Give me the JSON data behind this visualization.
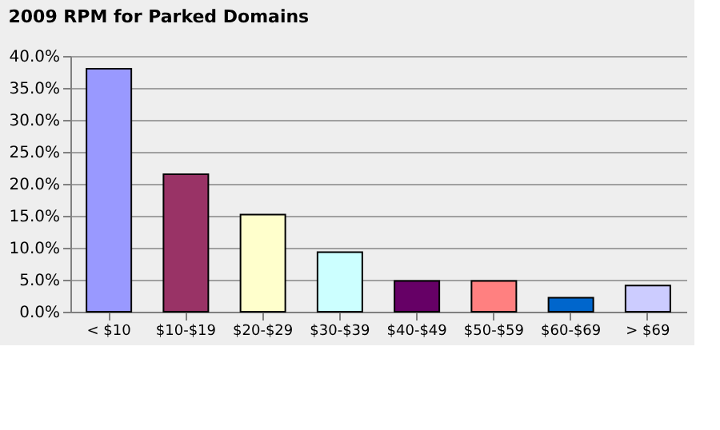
{
  "chart_data": {
    "type": "bar",
    "title": "2009  RPM for Parked Domains",
    "categories": [
      "< $10",
      "$10-$19",
      "$20-$29",
      "$30-$39",
      "$40-$49",
      "$50-$59",
      "$60-$69",
      "> $69"
    ],
    "values": [
      38,
      21.5,
      15.2,
      9.3,
      4.8,
      4.8,
      2.2,
      4.1
    ],
    "colors": [
      "#9999ff",
      "#993366",
      "#ffffcc",
      "#ccffff",
      "#660066",
      "#ff8080",
      "#0066cc",
      "#ccccff"
    ],
    "ylim": [
      0,
      40
    ],
    "yticks": [
      {
        "value": 0,
        "label": "0.0%"
      },
      {
        "value": 5,
        "label": "5.0%"
      },
      {
        "value": 10,
        "label": "10.0%"
      },
      {
        "value": 15,
        "label": "15.0%"
      },
      {
        "value": 20,
        "label": "20.0%"
      },
      {
        "value": 25,
        "label": "25.0%"
      },
      {
        "value": 30,
        "label": "30.0%"
      },
      {
        "value": 35,
        "label": "35.0%"
      },
      {
        "value": 40,
        "label": "40.0%"
      }
    ],
    "grid": "y",
    "legend": false
  }
}
